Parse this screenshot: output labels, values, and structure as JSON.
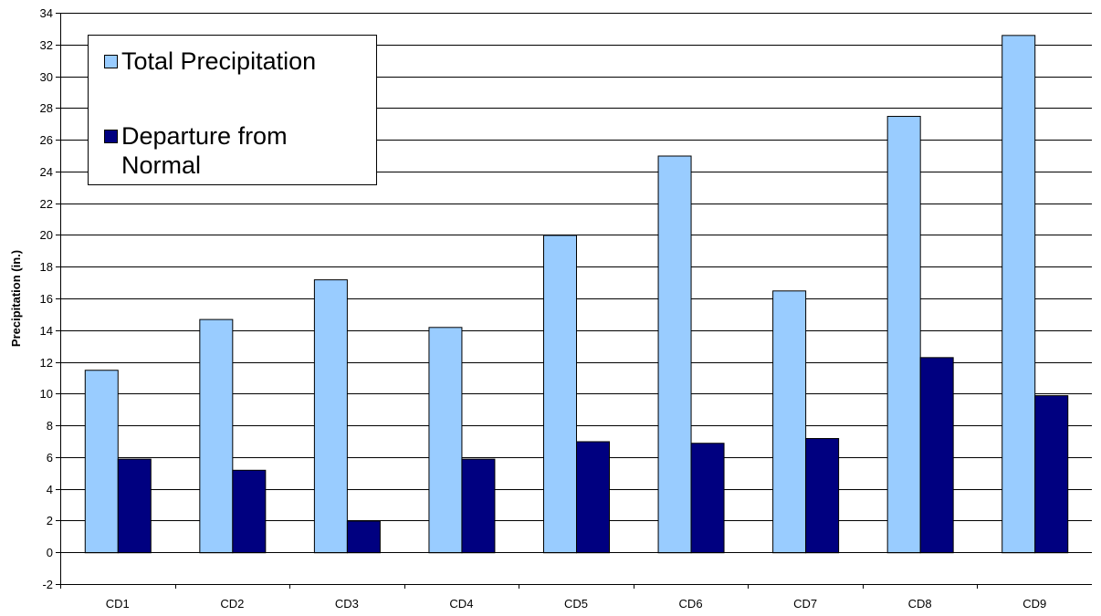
{
  "chart_data": {
    "type": "bar",
    "categories": [
      "CD1",
      "CD2",
      "CD3",
      "CD4",
      "CD5",
      "CD6",
      "CD7",
      "CD8",
      "CD9"
    ],
    "series": [
      {
        "name": "Total Precipitation",
        "color": "#99ccff",
        "values": [
          11.5,
          14.7,
          17.2,
          14.2,
          20.0,
          25.0,
          16.5,
          27.5,
          32.6
        ]
      },
      {
        "name": "Departure from Normal",
        "color": "#000080",
        "values": [
          5.9,
          5.2,
          2.0,
          5.9,
          7.0,
          6.9,
          7.2,
          12.3,
          9.9
        ]
      }
    ],
    "title": "",
    "xlabel": "",
    "ylabel": "Precipitation (in.)",
    "ylim": [
      -2,
      34
    ],
    "yticks": [
      "-2",
      "0",
      "2",
      "4",
      "6",
      "8",
      "10",
      "12",
      "14",
      "16",
      "18",
      "20",
      "22",
      "24",
      "26",
      "28",
      "30",
      "32",
      "34"
    ],
    "grid": true,
    "legend_position": "top-left"
  }
}
